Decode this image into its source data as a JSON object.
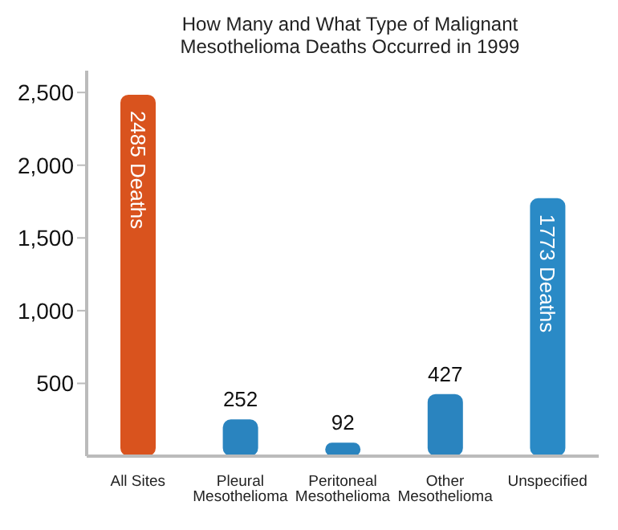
{
  "chart_data": {
    "type": "bar",
    "title": "How Many and What Type of Malignant Mesothelioma Deaths Occurred in 1999",
    "categories": [
      "All Sites",
      "Pleural Mesothelioma",
      "Peritoneal Mesothelioma",
      "Other Mesothelioma",
      "Unspecified"
    ],
    "values": [
      2485,
      252,
      92,
      427,
      1773
    ],
    "colors": [
      "#d9531e",
      "#2a84bf",
      "#2a84bf",
      "#2a84bf",
      "#2a8ac6"
    ],
    "value_labels": [
      "2485 Deaths",
      "252",
      "92",
      "427",
      "1773 Deaths"
    ],
    "ylim": [
      0,
      2650
    ],
    "yticks": [
      {
        "value": 500,
        "label": "500"
      },
      {
        "value": 1000,
        "label": "1,000"
      },
      {
        "value": 1500,
        "label": "1,500"
      },
      {
        "value": 2000,
        "label": "2,000"
      },
      {
        "value": 2500,
        "label": "2,500"
      }
    ],
    "grid": false,
    "legend": false
  }
}
